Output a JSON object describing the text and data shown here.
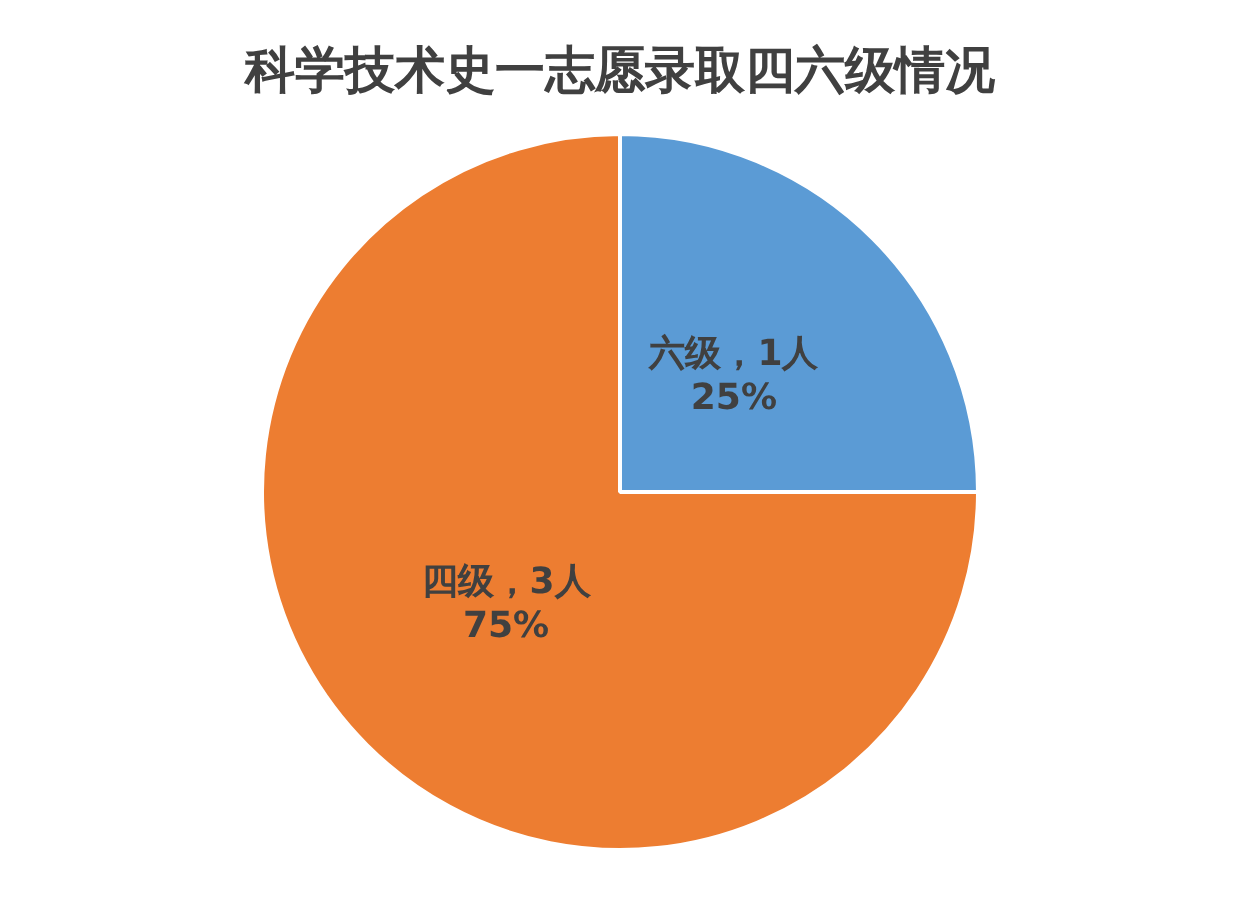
{
  "chart_data": {
    "type": "pie",
    "title": "科学技术史一志愿录取四六级情况",
    "categories": [
      "六级",
      "四级"
    ],
    "values": [
      1,
      3
    ],
    "colors": [
      "#5b9bd5",
      "#ed7d31"
    ],
    "value_labels": [
      "，1人\n25%",
      "，3人\n75%"
    ],
    "legend": false
  }
}
